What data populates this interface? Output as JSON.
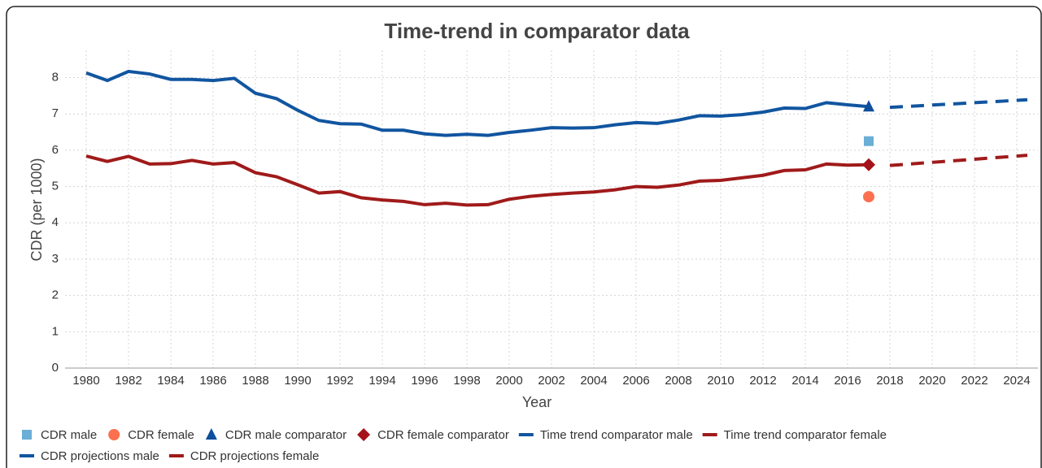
{
  "chart_data": {
    "type": "line",
    "title": "Time-trend in comparator data",
    "xlabel": "Year",
    "ylabel": "CDR (per 1000)",
    "xlim": [
      1979,
      2025
    ],
    "ylim": [
      0,
      8.75
    ],
    "xticks": [
      1980,
      1982,
      1984,
      1986,
      1988,
      1990,
      1992,
      1994,
      1996,
      1998,
      2000,
      2002,
      2004,
      2006,
      2008,
      2010,
      2012,
      2014,
      2016,
      2018,
      2020,
      2022,
      2024
    ],
    "yticks": [
      0,
      1,
      2,
      3,
      4,
      5,
      6,
      7,
      8
    ],
    "grid": true,
    "legend": "bottom",
    "series": [
      {
        "name": "CDR male",
        "marker": "square",
        "color": "#6baed6",
        "x": [
          2017
        ],
        "values": [
          6.25
        ]
      },
      {
        "name": "CDR female",
        "marker": "circle",
        "color": "#fc7050",
        "x": [
          2017
        ],
        "values": [
          4.72
        ]
      },
      {
        "name": "CDR male comparator",
        "marker": "triangle",
        "color": "#0d4f9c",
        "x": [
          2017
        ],
        "values": [
          7.2
        ]
      },
      {
        "name": "CDR female comparator",
        "marker": "diamond",
        "color": "#a5121a",
        "x": [
          2017
        ],
        "values": [
          5.6
        ]
      },
      {
        "name": "Time trend comparator male",
        "marker": "line",
        "color": "#1155a0",
        "x": [
          1980,
          1981,
          1982,
          1983,
          1984,
          1985,
          1986,
          1987,
          1988,
          1989,
          1990,
          1991,
          1992,
          1993,
          1994,
          1995,
          1996,
          1997,
          1998,
          1999,
          2000,
          2001,
          2002,
          2003,
          2004,
          2005,
          2006,
          2007,
          2008,
          2009,
          2010,
          2011,
          2012,
          2013,
          2014,
          2015,
          2016,
          2017
        ],
        "values": [
          8.13,
          7.92,
          8.17,
          8.1,
          7.95,
          7.95,
          7.92,
          7.98,
          7.57,
          7.42,
          7.1,
          6.82,
          6.73,
          6.72,
          6.55,
          6.55,
          6.45,
          6.41,
          6.44,
          6.41,
          6.49,
          6.55,
          6.62,
          6.61,
          6.62,
          6.7,
          6.76,
          6.74,
          6.83,
          6.95,
          6.94,
          6.98,
          7.05,
          7.16,
          7.15,
          7.31,
          7.25,
          7.2
        ]
      },
      {
        "name": "Time trend comparator female",
        "marker": "line",
        "color": "#a01a1a",
        "x": [
          1980,
          1981,
          1982,
          1983,
          1984,
          1985,
          1986,
          1987,
          1988,
          1989,
          1990,
          1991,
          1992,
          1993,
          1994,
          1995,
          1996,
          1997,
          1998,
          1999,
          2000,
          2001,
          2002,
          2003,
          2004,
          2005,
          2006,
          2007,
          2008,
          2009,
          2010,
          2011,
          2012,
          2013,
          2014,
          2015,
          2016,
          2017
        ],
        "values": [
          5.84,
          5.69,
          5.83,
          5.62,
          5.63,
          5.72,
          5.62,
          5.66,
          5.38,
          5.27,
          5.05,
          4.82,
          4.86,
          4.69,
          4.63,
          4.59,
          4.5,
          4.54,
          4.49,
          4.5,
          4.65,
          4.73,
          4.78,
          4.82,
          4.85,
          4.91,
          5.0,
          4.98,
          5.04,
          5.15,
          5.17,
          5.24,
          5.31,
          5.44,
          5.46,
          5.62,
          5.59,
          5.6
        ]
      },
      {
        "name": "CDR projections male",
        "marker": "dash",
        "color": "#1155a0",
        "x": [
          2018,
          2024.5
        ],
        "values": [
          7.18,
          7.39
        ]
      },
      {
        "name": "CDR projections female",
        "marker": "dash",
        "color": "#a01a1a",
        "x": [
          2018,
          2024.5
        ],
        "values": [
          5.58,
          5.86
        ]
      }
    ]
  }
}
